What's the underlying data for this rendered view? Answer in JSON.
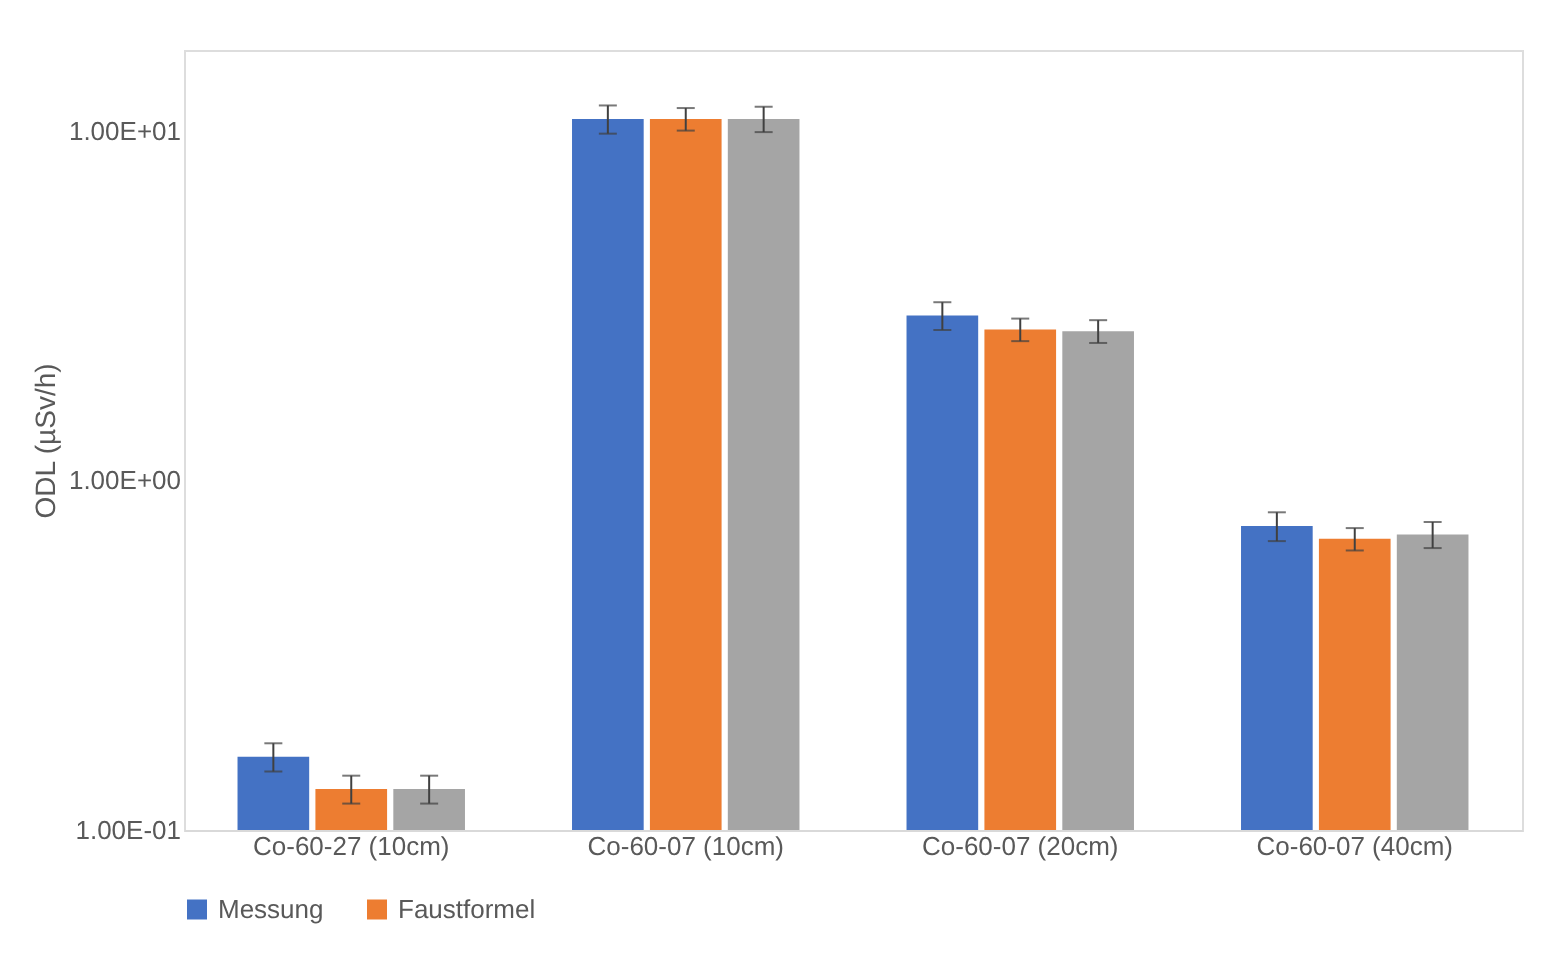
{
  "chart_data": {
    "type": "bar",
    "ylabel": "ODL (µSv/h)",
    "log": true,
    "ylim": [
      0.1,
      17
    ],
    "yticks": [
      {
        "value": 0.1,
        "label": "1.00E-01"
      },
      {
        "value": 1,
        "label": "1.00E+00"
      },
      {
        "value": 10,
        "label": "1.00E+01"
      }
    ],
    "grid": false,
    "legend": "bottom",
    "categories": [
      "Co-60-27 (10cm)",
      "Co-60-07 (10cm)",
      "Co-60-07 (20cm)",
      "Co-60-07 (40cm)"
    ],
    "series": [
      {
        "name": "Messung",
        "color": "#4472c4",
        "values": [
          0.162,
          10.8,
          2.96,
          0.74
        ],
        "errors": [
          0.015,
          1.0,
          0.27,
          0.07
        ]
      },
      {
        "name": "Faustformel",
        "color": "#ed7d31",
        "values": [
          0.131,
          10.8,
          2.7,
          0.68
        ],
        "errors": [
          0.012,
          0.8,
          0.2,
          0.05
        ]
      },
      {
        "color": "#a5a5a5",
        "values": [
          0.131,
          10.8,
          2.67,
          0.7
        ],
        "errors": [
          0.012,
          0.9,
          0.2,
          0.06
        ]
      }
    ]
  }
}
